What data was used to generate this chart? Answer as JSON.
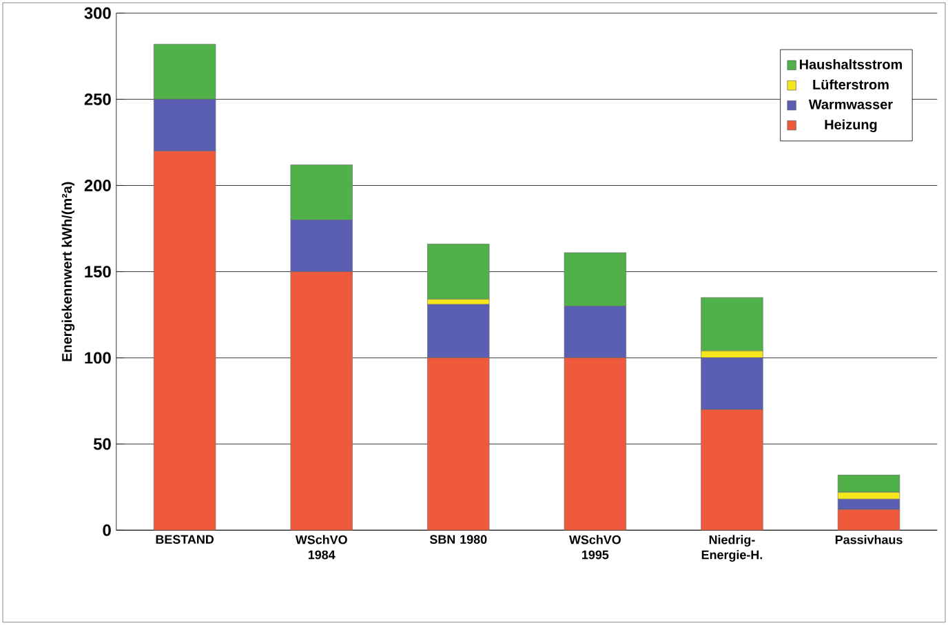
{
  "chart_data": {
    "type": "bar",
    "stacked": true,
    "ylabel": "Energiekennwert  kWh/(m²a)",
    "categories": [
      "BESTAND",
      "WSchVO 1984",
      "SBN 1980",
      "WSchVO 1995",
      "Niedrig-Energie-H.",
      "Passivhaus"
    ],
    "series": [
      {
        "name": "Heizung",
        "color": "#f05a3c",
        "values": [
          220,
          150,
          100,
          100,
          70,
          12
        ]
      },
      {
        "name": "Warmwasser",
        "color": "#5a5fb4",
        "values": [
          30,
          30,
          31,
          30,
          30,
          6
        ]
      },
      {
        "name": "Lüfterstrom",
        "color": "#f5e61e",
        "values": [
          null,
          null,
          3,
          null,
          4,
          4
        ]
      },
      {
        "name": "Haushaltsstrom",
        "color": "#50b04a",
        "values": [
          32,
          32,
          32,
          31,
          31,
          10
        ]
      }
    ],
    "ylim": [
      0,
      300
    ],
    "yticks": [
      0,
      50,
      100,
      150,
      200,
      250,
      300
    ],
    "grid": "y",
    "legend": "top right"
  }
}
